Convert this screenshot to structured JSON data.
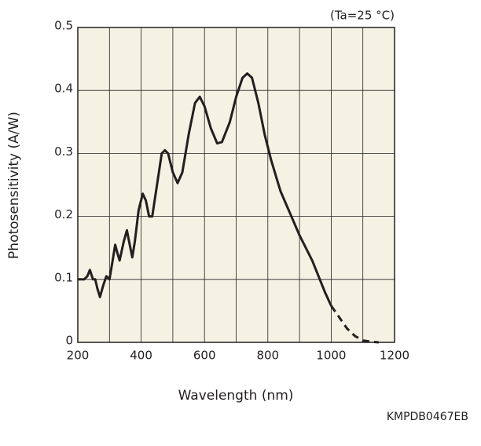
{
  "chart_data": {
    "type": "line",
    "xlabel": "Wavelength (nm)",
    "ylabel": "Photosensitivity (A/W)",
    "annotation": "(Ta=25 °C)",
    "footnote": "KMPDB0467EB",
    "xlim": [
      200,
      1200
    ],
    "xticks": [
      200,
      400,
      600,
      800,
      1000,
      1200
    ],
    "ylim": [
      0,
      0.5
    ],
    "yticks": [
      0,
      0.1,
      0.2,
      0.3,
      0.4,
      0.5
    ],
    "grid": true,
    "series": [
      {
        "color": "#231f20",
        "line_style": "solid",
        "x": [
          200,
          210,
          220,
          230,
          238,
          248,
          255,
          262,
          270,
          280,
          290,
          300,
          310,
          318,
          326,
          332,
          345,
          355,
          362,
          372,
          380,
          392,
          405,
          415,
          425,
          435,
          450,
          465,
          475,
          485,
          500,
          515,
          530,
          550,
          570,
          585,
          600,
          620,
          640,
          655,
          680,
          700,
          720,
          735,
          750,
          770,
          790,
          810,
          840,
          870,
          900,
          940,
          980,
          1000
        ],
        "values": [
          0.1,
          0.1,
          0.1,
          0.105,
          0.115,
          0.1,
          0.1,
          0.085,
          0.072,
          0.09,
          0.105,
          0.1,
          0.13,
          0.155,
          0.14,
          0.13,
          0.16,
          0.178,
          0.16,
          0.135,
          0.16,
          0.21,
          0.236,
          0.225,
          0.2,
          0.2,
          0.25,
          0.3,
          0.305,
          0.3,
          0.27,
          0.253,
          0.27,
          0.33,
          0.38,
          0.39,
          0.375,
          0.34,
          0.316,
          0.318,
          0.35,
          0.39,
          0.42,
          0.427,
          0.42,
          0.38,
          0.33,
          0.29,
          0.24,
          0.205,
          0.17,
          0.13,
          0.08,
          0.058
        ]
      },
      {
        "color": "#231f20",
        "line_style": "dashed",
        "x": [
          1000,
          1025,
          1050,
          1075,
          1100,
          1125,
          1150
        ],
        "values": [
          0.058,
          0.04,
          0.022,
          0.01,
          0.003,
          0.001,
          0
        ]
      }
    ]
  }
}
